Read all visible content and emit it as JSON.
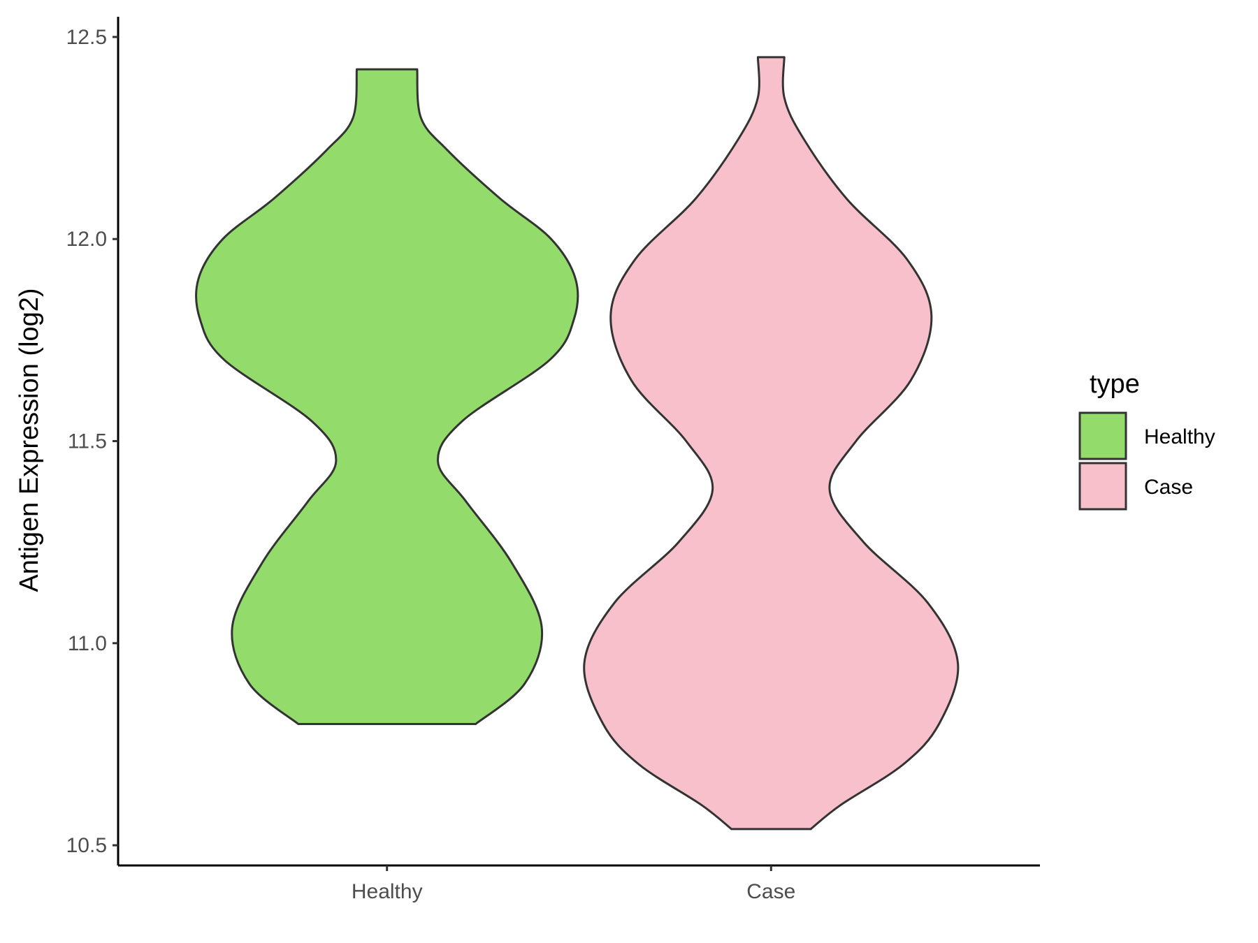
{
  "chart_data": {
    "type": "violin",
    "ylabel": "Antigen Expression (log2)",
    "xlabel": "",
    "ylim": [
      10.45,
      12.55
    ],
    "yticks": [
      10.5,
      11.0,
      11.5,
      12.0,
      12.5
    ],
    "ytick_labels": [
      "10.5",
      "11.0",
      "11.5",
      "12.0",
      "12.5"
    ],
    "categories": [
      "Healthy",
      "Case"
    ],
    "legend": {
      "title": "type",
      "position": "right",
      "entries": [
        {
          "label": "Healthy",
          "color": "#93dc6b"
        },
        {
          "label": "Case",
          "color": "#f7c0cb"
        }
      ]
    },
    "grid": false,
    "series": [
      {
        "name": "Healthy",
        "color": "#93dc6b",
        "min": 10.8,
        "max": 12.42,
        "density_profile": [
          {
            "y": 10.8,
            "w": 0.47
          },
          {
            "y": 10.9,
            "w": 0.73
          },
          {
            "y": 11.04,
            "w": 0.82
          },
          {
            "y": 11.2,
            "w": 0.66
          },
          {
            "y": 11.35,
            "w": 0.42
          },
          {
            "y": 11.45,
            "w": 0.27
          },
          {
            "y": 11.55,
            "w": 0.4
          },
          {
            "y": 11.7,
            "w": 0.86
          },
          {
            "y": 11.8,
            "w": 0.99
          },
          {
            "y": 11.9,
            "w": 1.0
          },
          {
            "y": 12.0,
            "w": 0.87
          },
          {
            "y": 12.1,
            "w": 0.6
          },
          {
            "y": 12.22,
            "w": 0.32
          },
          {
            "y": 12.3,
            "w": 0.18
          },
          {
            "y": 12.42,
            "w": 0.16
          }
        ]
      },
      {
        "name": "Case",
        "color": "#f7c0cb",
        "min": 10.54,
        "max": 12.45,
        "density_profile": [
          {
            "y": 10.54,
            "w": 0.21
          },
          {
            "y": 10.6,
            "w": 0.37
          },
          {
            "y": 10.7,
            "w": 0.7
          },
          {
            "y": 10.8,
            "w": 0.89
          },
          {
            "y": 10.95,
            "w": 0.99
          },
          {
            "y": 11.1,
            "w": 0.83
          },
          {
            "y": 11.25,
            "w": 0.49
          },
          {
            "y": 11.38,
            "w": 0.31
          },
          {
            "y": 11.5,
            "w": 0.45
          },
          {
            "y": 11.65,
            "w": 0.74
          },
          {
            "y": 11.81,
            "w": 0.85
          },
          {
            "y": 11.95,
            "w": 0.72
          },
          {
            "y": 12.1,
            "w": 0.4
          },
          {
            "y": 12.25,
            "w": 0.17
          },
          {
            "y": 12.35,
            "w": 0.07
          },
          {
            "y": 12.45,
            "w": 0.07
          }
        ]
      }
    ]
  }
}
